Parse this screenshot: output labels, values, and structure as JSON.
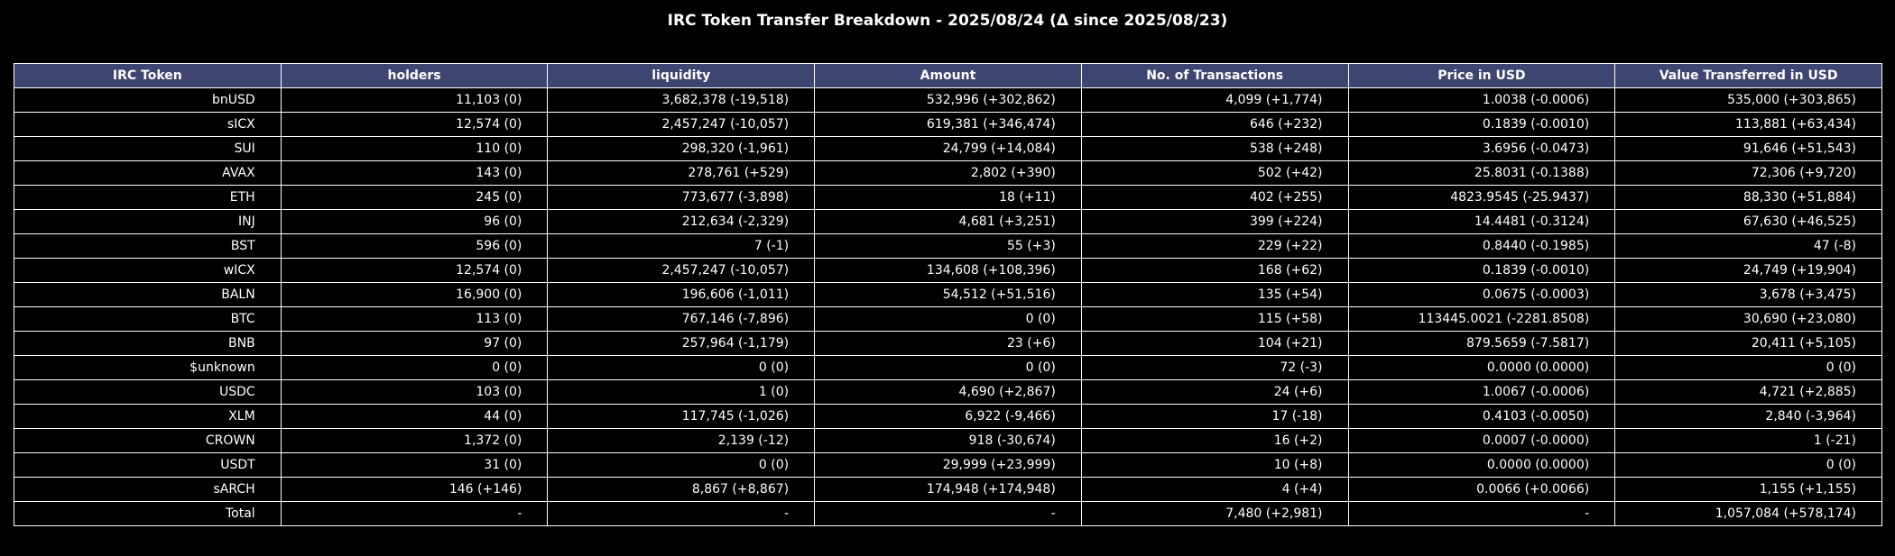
{
  "chart_data": {
    "type": "table",
    "title": "IRC Token Transfer Breakdown - 2025/08/24 (Δ since 2025/08/23)",
    "header_color": "#3e4570",
    "columns": [
      "IRC Token",
      "holders",
      "liquidity",
      "Amount",
      "No. of Transactions",
      "Price in USD",
      "Value Transferred in USD"
    ],
    "rows": [
      [
        "bnUSD",
        "11,103 (0)",
        "3,682,378 (-19,518)",
        "532,996 (+302,862)",
        "4,099 (+1,774)",
        "1.0038 (-0.0006)",
        "535,000 (+303,865)"
      ],
      [
        "sICX",
        "12,574 (0)",
        "2,457,247 (-10,057)",
        "619,381 (+346,474)",
        "646 (+232)",
        "0.1839 (-0.0010)",
        "113,881 (+63,434)"
      ],
      [
        "SUI",
        "110 (0)",
        "298,320 (-1,961)",
        "24,799 (+14,084)",
        "538 (+248)",
        "3.6956 (-0.0473)",
        "91,646 (+51,543)"
      ],
      [
        "AVAX",
        "143 (0)",
        "278,761 (+529)",
        "2,802 (+390)",
        "502 (+42)",
        "25.8031 (-0.1388)",
        "72,306 (+9,720)"
      ],
      [
        "ETH",
        "245 (0)",
        "773,677 (-3,898)",
        "18 (+11)",
        "402 (+255)",
        "4823.9545 (-25.9437)",
        "88,330 (+51,884)"
      ],
      [
        "INJ",
        "96 (0)",
        "212,634 (-2,329)",
        "4,681 (+3,251)",
        "399 (+224)",
        "14.4481 (-0.3124)",
        "67,630 (+46,525)"
      ],
      [
        "BST",
        "596 (0)",
        "7 (-1)",
        "55 (+3)",
        "229 (+22)",
        "0.8440 (-0.1985)",
        "47 (-8)"
      ],
      [
        "wICX",
        "12,574 (0)",
        "2,457,247 (-10,057)",
        "134,608 (+108,396)",
        "168 (+62)",
        "0.1839 (-0.0010)",
        "24,749 (+19,904)"
      ],
      [
        "BALN",
        "16,900 (0)",
        "196,606 (-1,011)",
        "54,512 (+51,516)",
        "135 (+54)",
        "0.0675 (-0.0003)",
        "3,678 (+3,475)"
      ],
      [
        "BTC",
        "113 (0)",
        "767,146 (-7,896)",
        "0 (0)",
        "115 (+58)",
        "113445.0021 (-2281.8508)",
        "30,690 (+23,080)"
      ],
      [
        "BNB",
        "97 (0)",
        "257,964 (-1,179)",
        "23 (+6)",
        "104 (+21)",
        "879.5659 (-7.5817)",
        "20,411 (+5,105)"
      ],
      [
        "$unknown",
        "0 (0)",
        "0 (0)",
        "0 (0)",
        "72 (-3)",
        "0.0000 (0.0000)",
        "0 (0)"
      ],
      [
        "USDC",
        "103 (0)",
        "1 (0)",
        "4,690 (+2,867)",
        "24 (+6)",
        "1.0067 (-0.0006)",
        "4,721 (+2,885)"
      ],
      [
        "XLM",
        "44 (0)",
        "117,745 (-1,026)",
        "6,922 (-9,466)",
        "17 (-18)",
        "0.4103 (-0.0050)",
        "2,840 (-3,964)"
      ],
      [
        "CROWN",
        "1,372 (0)",
        "2,139 (-12)",
        "918 (-30,674)",
        "16 (+2)",
        "0.0007 (-0.0000)",
        "1 (-21)"
      ],
      [
        "USDT",
        "31 (0)",
        "0 (0)",
        "29,999 (+23,999)",
        "10 (+8)",
        "0.0000 (0.0000)",
        "0 (0)"
      ],
      [
        "sARCH",
        "146 (+146)",
        "8,867 (+8,867)",
        "174,948 (+174,948)",
        "4 (+4)",
        "0.0066 (+0.0066)",
        "1,155 (+1,155)"
      ],
      [
        "Total",
        "-",
        "-",
        "-",
        "7,480 (+2,981)",
        "-",
        "1,057,084 (+578,174)"
      ]
    ]
  }
}
